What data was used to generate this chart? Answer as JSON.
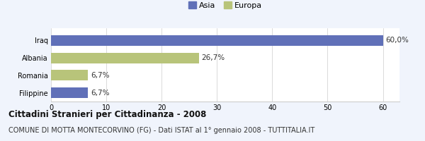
{
  "categories": [
    "Iraq",
    "Albania",
    "Romania",
    "Filippine"
  ],
  "values": [
    60.0,
    26.7,
    6.7,
    6.7
  ],
  "colors": [
    "#6070b8",
    "#b8c47a",
    "#b8c47a",
    "#6070b8"
  ],
  "legend_labels": [
    "Asia",
    "Europa"
  ],
  "legend_colors": [
    "#6070b8",
    "#b8c47a"
  ],
  "bar_labels": [
    "60,0%",
    "26,7%",
    "6,7%",
    "6,7%"
  ],
  "title": "Cittadini Stranieri per Cittadinanza - 2008",
  "subtitle": "COMUNE DI MOTTA MONTECORVINO (FG) - Dati ISTAT al 1° gennaio 2008 - TUTTITALIA.IT",
  "xlim": [
    0,
    63
  ],
  "xticks": [
    0,
    10,
    20,
    30,
    40,
    50,
    60
  ],
  "bg_color": "#f0f4fc",
  "plot_bg_color": "#ffffff",
  "title_fontsize": 8.5,
  "subtitle_fontsize": 7,
  "label_fontsize": 7.5,
  "tick_fontsize": 7,
  "legend_fontsize": 8
}
